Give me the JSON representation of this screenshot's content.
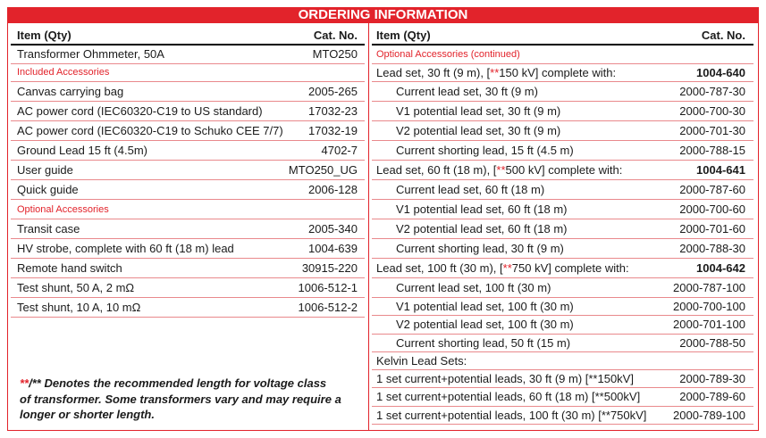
{
  "title": "ORDERING INFORMATION",
  "colors": {
    "accent": "#e2232b",
    "rule": "#e9898c",
    "text": "#1b1b1b",
    "header_rule": "#000000",
    "title_text": "#ffffff"
  },
  "left": {
    "header": {
      "item": "Item (Qty)",
      "cat_no": "Cat. No."
    },
    "main_item": {
      "item": "Transformer Ohmmeter, 50A",
      "cat_no": "MTO250"
    },
    "included": {
      "section": "Included Accessories",
      "rows": [
        {
          "item": "Canvas carrying bag",
          "cat_no": "2005-265"
        },
        {
          "item": "AC power cord (IEC60320-C19 to US standard)",
          "cat_no": "17032-23"
        },
        {
          "item": "AC power cord (IEC60320-C19 to Schuko CEE 7/7)",
          "cat_no": "17032-19"
        },
        {
          "item": "Ground Lead 15 ft (4.5m)",
          "cat_no": "4702-7"
        },
        {
          "item": "User guide",
          "cat_no": "MTO250_UG"
        },
        {
          "item": "Quick guide",
          "cat_no": "2006-128"
        }
      ]
    },
    "optional": {
      "section": "Optional Accessories",
      "rows": [
        {
          "item": "Transit case",
          "cat_no": "2005-340"
        },
        {
          "item": "HV strobe, complete with 60 ft (18 m) lead",
          "cat_no": "1004-639"
        },
        {
          "item": "Remote hand switch",
          "cat_no": "30915-220"
        },
        {
          "item": "Test shunt, 50 A, 2 mΩ",
          "cat_no": "1006-512-1"
        },
        {
          "item": "Test shunt, 10 A, 10 mΩ",
          "cat_no": "1006-512-2"
        }
      ]
    }
  },
  "right": {
    "header": {
      "item": "Item (Qty)",
      "cat_no": "Cat. No."
    },
    "section": "Optional Accessories (continued)",
    "lead_sets": [
      {
        "item": "Lead set, 30 ft (9 m), [**150 kV] complete with:",
        "cat_no": "1004-640",
        "components": [
          {
            "item": "Current lead set, 30 ft (9 m)",
            "cat_no": "2000-787-30"
          },
          {
            "item": "V1 potential lead set, 30 ft (9 m)",
            "cat_no": "2000-700-30"
          },
          {
            "item": "V2 potential lead set, 30 ft (9 m)",
            "cat_no": "2000-701-30"
          },
          {
            "item": "Current shorting lead, 15 ft (4.5 m)",
            "cat_no": "2000-788-15"
          }
        ]
      },
      {
        "item": "Lead set, 60 ft (18 m), [**500 kV] complete with:",
        "cat_no": "1004-641",
        "components": [
          {
            "item": "Current lead set, 60 ft (18 m)",
            "cat_no": "2000-787-60"
          },
          {
            "item": "V1 potential lead set, 60 ft (18 m)",
            "cat_no": "2000-700-60"
          },
          {
            "item": "V2 potential lead set, 60 ft (18 m)",
            "cat_no": "2000-701-60"
          },
          {
            "item": "Current shorting lead, 30 ft (9 m)",
            "cat_no": "2000-788-30"
          }
        ]
      },
      {
        "item": "Lead set, 100 ft (30 m), [**750 kV] complete with:",
        "cat_no": "1004-642",
        "components": [
          {
            "item": "Current lead set, 100 ft (30 m)",
            "cat_no": "2000-787-100"
          },
          {
            "item": "V1 potential lead set, 100 ft (30 m)",
            "cat_no": "2000-700-100"
          },
          {
            "item": "V2 potential lead set, 100 ft (30 m)",
            "cat_no": "2000-701-100"
          },
          {
            "item": "Current shorting lead, 50 ft (15 m)",
            "cat_no": "2000-788-50"
          }
        ]
      }
    ],
    "kelvin": {
      "heading": "Kelvin Lead Sets:",
      "rows": [
        {
          "item": "1 set current+potential leads, 30 ft (9 m) [**150kV]",
          "cat_no": "2000-789-30"
        },
        {
          "item": "1 set current+potential leads, 60 ft (18 m) [**500kV]",
          "cat_no": "2000-789-60"
        },
        {
          "item": "1 set current+potential leads, 100 ft (30 m) [**750kV]",
          "cat_no": "2000-789-100"
        }
      ]
    }
  },
  "footnote": {
    "lines": [
      "**/** Denotes the recommended length for voltage class",
      "of transformer. Some transformers vary and may require a",
      "longer or shorter length."
    ]
  }
}
